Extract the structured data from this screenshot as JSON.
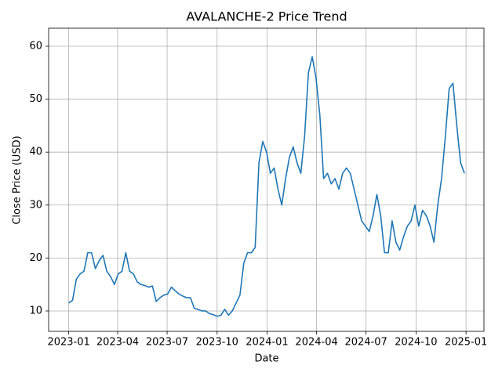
{
  "chart_data": {
    "type": "line",
    "title": "AVALANCHE-2 Price Trend",
    "x_label": "Date",
    "y_label": "Close Price (USD)",
    "x": [
      "2023-01-01",
      "2023-01-08",
      "2023-01-15",
      "2023-01-22",
      "2023-01-29",
      "2023-02-05",
      "2023-02-12",
      "2023-02-19",
      "2023-02-26",
      "2023-03-05",
      "2023-03-12",
      "2023-03-19",
      "2023-03-26",
      "2023-04-02",
      "2023-04-09",
      "2023-04-16",
      "2023-04-23",
      "2023-04-30",
      "2023-05-07",
      "2023-05-14",
      "2023-05-21",
      "2023-05-28",
      "2023-06-04",
      "2023-06-11",
      "2023-06-18",
      "2023-06-25",
      "2023-07-02",
      "2023-07-09",
      "2023-07-16",
      "2023-07-23",
      "2023-07-30",
      "2023-08-06",
      "2023-08-13",
      "2023-08-20",
      "2023-08-27",
      "2023-09-03",
      "2023-09-10",
      "2023-09-17",
      "2023-09-24",
      "2023-10-01",
      "2023-10-08",
      "2023-10-15",
      "2023-10-22",
      "2023-10-29",
      "2023-11-05",
      "2023-11-12",
      "2023-11-19",
      "2023-11-26",
      "2023-12-03",
      "2023-12-10",
      "2023-12-17",
      "2023-12-24",
      "2023-12-31",
      "2024-01-07",
      "2024-01-14",
      "2024-01-21",
      "2024-01-28",
      "2024-02-04",
      "2024-02-11",
      "2024-02-18",
      "2024-02-25",
      "2024-03-03",
      "2024-03-10",
      "2024-03-17",
      "2024-03-24",
      "2024-03-31",
      "2024-04-07",
      "2024-04-14",
      "2024-04-21",
      "2024-04-28",
      "2024-05-05",
      "2024-05-12",
      "2024-05-19",
      "2024-05-26",
      "2024-06-02",
      "2024-06-09",
      "2024-06-16",
      "2024-06-23",
      "2024-06-30",
      "2024-07-07",
      "2024-07-14",
      "2024-07-21",
      "2024-07-28",
      "2024-08-04",
      "2024-08-11",
      "2024-08-18",
      "2024-08-25",
      "2024-09-01",
      "2024-09-08",
      "2024-09-15",
      "2024-09-22",
      "2024-09-29",
      "2024-10-06",
      "2024-10-13",
      "2024-10-20",
      "2024-10-27",
      "2024-11-03",
      "2024-11-10",
      "2024-11-17",
      "2024-11-24",
      "2024-12-01",
      "2024-12-08",
      "2024-12-15",
      "2024-12-22",
      "2024-12-29"
    ],
    "series": [
      {
        "color": "#1f77b4",
        "values": [
          11.5,
          12,
          16,
          17,
          17.5,
          21,
          21,
          18,
          19.5,
          20.5,
          17.5,
          16.5,
          15,
          17,
          17.5,
          21,
          17.5,
          17,
          15.5,
          15,
          14.8,
          14.5,
          14.7,
          11.8,
          12.5,
          13,
          13.2,
          14.5,
          13.8,
          13.2,
          12.8,
          12.5,
          12.5,
          10.5,
          10.3,
          10,
          10,
          9.5,
          9.3,
          9,
          9.2,
          10.3,
          9.2,
          10,
          11.5,
          13,
          19,
          21,
          21,
          22,
          38,
          42,
          40,
          36,
          37,
          33,
          30,
          35,
          39,
          41,
          38,
          36,
          43,
          55,
          58,
          54,
          47,
          35,
          36,
          34,
          35,
          33,
          36,
          37,
          36,
          33,
          30,
          27,
          26,
          25,
          28,
          32,
          28,
          21,
          21,
          27,
          23,
          21.5,
          24,
          26,
          27,
          30,
          26,
          29,
          28,
          26,
          23,
          30,
          35,
          43,
          52,
          53,
          45,
          38,
          36
        ]
      }
    ],
    "xlim": [
      "2022-11-25",
      "2025-02-03"
    ],
    "xticks": [
      {
        "value": "2023-01-01",
        "label": "2023-01"
      },
      {
        "value": "2023-04-01",
        "label": "2023-04"
      },
      {
        "value": "2023-07-01",
        "label": "2023-07"
      },
      {
        "value": "2023-10-01",
        "label": "2023-10"
      },
      {
        "value": "2024-01-01",
        "label": "2024-01"
      },
      {
        "value": "2024-04-01",
        "label": "2024-04"
      },
      {
        "value": "2024-07-01",
        "label": "2024-07"
      },
      {
        "value": "2024-10-01",
        "label": "2024-10"
      },
      {
        "value": "2025-01-01",
        "label": "2025-01"
      }
    ],
    "ylim": [
      6.15,
      63.4
    ],
    "yticks": [
      10,
      20,
      30,
      40,
      50,
      60
    ],
    "grid": true
  }
}
